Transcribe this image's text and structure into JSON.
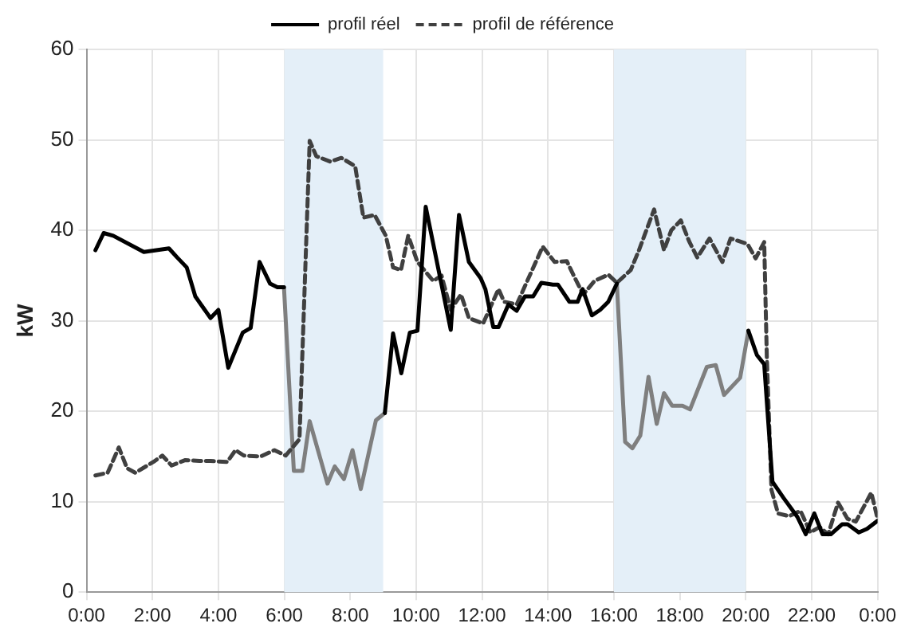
{
  "chart_data": {
    "type": "line",
    "ylabel": "kW",
    "xlim": [
      0,
      24
    ],
    "ylim": [
      0,
      60
    ],
    "xticks": [
      {
        "value": 0,
        "label": "0:00"
      },
      {
        "value": 2,
        "label": "2:00"
      },
      {
        "value": 4,
        "label": "4:00"
      },
      {
        "value": 6,
        "label": "6:00"
      },
      {
        "value": 8,
        "label": "8:00"
      },
      {
        "value": 10,
        "label": "10:00"
      },
      {
        "value": 12,
        "label": "12:00"
      },
      {
        "value": 14,
        "label": "14:00"
      },
      {
        "value": 16,
        "label": "16:00"
      },
      {
        "value": 18,
        "label": "18:00"
      },
      {
        "value": 20,
        "label": "20:00"
      },
      {
        "value": 22,
        "label": "22:00"
      },
      {
        "value": 24,
        "label": "0:00"
      }
    ],
    "yticks": [
      0,
      10,
      20,
      30,
      40,
      50,
      60
    ],
    "grid": true,
    "legend": "top",
    "marker": "none",
    "bands": [
      {
        "axis": "x",
        "from": 6,
        "to": 9,
        "color": "#e4eff8"
      },
      {
        "axis": "x",
        "from": 16,
        "to": 20,
        "color": "#e4eff8"
      }
    ],
    "series": [
      {
        "name": "profil réel",
        "color": "#000000",
        "line_style": "solid",
        "x": [
          0.27,
          0.52,
          0.81,
          1.74,
          2.5,
          2.75,
          3.04,
          3.3,
          3.76,
          4.0,
          4.3,
          4.74,
          4.98,
          5.25,
          5.57,
          5.79,
          5.99,
          7.0,
          9.05,
          9.3,
          9.55,
          9.81,
          10.04,
          10.29,
          11.05,
          11.3,
          11.6,
          11.96,
          12.1,
          12.34,
          12.5,
          12.8,
          13.05,
          13.3,
          13.55,
          13.8,
          14.15,
          14.3,
          14.65,
          14.9,
          15.05,
          15.33,
          15.58,
          15.83,
          16.09,
          18.0,
          20.08,
          20.34,
          20.56,
          20.81,
          21.15,
          21.57,
          21.82,
          22.08,
          22.33,
          22.58,
          22.92,
          23.09,
          23.43,
          23.68,
          24
        ],
        "values": [
          37.8,
          39.7,
          39.4,
          37.6,
          38.0,
          37.0,
          35.9,
          32.7,
          30.3,
          31.2,
          24.8,
          28.7,
          29.2,
          36.5,
          34.1,
          33.7,
          33.7,
          null,
          19.8,
          28.6,
          24.2,
          28.7,
          28.9,
          42.6,
          29.0,
          41.7,
          36.5,
          34.7,
          33.5,
          29.3,
          29.3,
          31.8,
          31.1,
          32.7,
          32.7,
          34.2,
          34.0,
          34.0,
          32.1,
          32.1,
          33.5,
          30.6,
          31.2,
          32.1,
          34.1,
          null,
          28.9,
          26.2,
          25.2,
          12.2,
          10.4,
          8.3,
          6.4,
          8.7,
          6.4,
          6.4,
          7.5,
          7.5,
          6.6,
          7.0,
          7.9
        ]
      },
      {
        "name": "profil de référence",
        "color": "#404040",
        "line_style": "dashed",
        "x": [
          0.27,
          0.64,
          0.98,
          1.23,
          1.48,
          2.03,
          2.3,
          2.58,
          3.0,
          3.43,
          3.76,
          4.27,
          4.52,
          4.77,
          5.28,
          5.7,
          6.04,
          6.46,
          6.77,
          6.97,
          7.39,
          7.73,
          8.15,
          8.4,
          8.74,
          9.08,
          9.3,
          9.54,
          9.76,
          10.04,
          10.52,
          10.77,
          11.05,
          11.36,
          11.6,
          12.03,
          12.5,
          12.67,
          13.05,
          13.84,
          14.2,
          14.57,
          14.82,
          15.07,
          15.41,
          15.83,
          16.09,
          16.51,
          16.76,
          17.22,
          17.52,
          17.74,
          18.03,
          18.28,
          18.53,
          18.9,
          19.29,
          19.54,
          20.05,
          20.3,
          20.56,
          20.64,
          20.78,
          20.98,
          21.32,
          21.66,
          21.96,
          22.24,
          22.5,
          22.8,
          23.09,
          23.34,
          23.81,
          24
        ],
        "values": [
          12.9,
          13.2,
          16.0,
          13.7,
          13.2,
          14.4,
          15.1,
          14.0,
          14.6,
          14.5,
          14.5,
          14.4,
          15.7,
          15.1,
          15.0,
          15.7,
          15.1,
          16.9,
          49.9,
          48.2,
          47.6,
          48.0,
          47.1,
          41.4,
          41.7,
          39.4,
          35.9,
          35.6,
          39.4,
          36.5,
          34.4,
          35.0,
          31.2,
          32.9,
          30.3,
          29.7,
          33.5,
          32.1,
          31.8,
          38.2,
          36.5,
          36.6,
          34.7,
          32.9,
          34.4,
          35.1,
          34.2,
          35.6,
          37.8,
          42.3,
          37.8,
          40.0,
          41.1,
          38.8,
          37.0,
          39.1,
          36.5,
          39.1,
          38.5,
          36.9,
          38.7,
          25.9,
          11.3,
          8.7,
          8.4,
          9.0,
          6.6,
          7.2,
          6.4,
          9.9,
          8.1,
          7.8,
          11.0,
          8.1
        ]
      },
      {
        "color": "#7f7f7f",
        "line_style": "solid",
        "x": [
          5.99,
          6.29,
          6.55,
          6.77,
          7.31,
          7.53,
          7.81,
          8.07,
          8.32,
          8.78,
          9.05,
          12.0,
          16.09,
          16.34,
          16.56,
          16.8,
          17.05,
          17.3,
          17.52,
          17.77,
          18.08,
          18.31,
          18.82,
          19.09,
          19.34,
          19.83,
          20.08
        ],
        "values": [
          33.7,
          13.4,
          13.4,
          18.9,
          12.0,
          13.9,
          12.5,
          15.7,
          11.4,
          19.0,
          19.8,
          null,
          34.1,
          16.6,
          15.9,
          17.3,
          23.8,
          18.6,
          22.0,
          20.6,
          20.6,
          20.2,
          24.9,
          25.1,
          21.8,
          23.7,
          28.9
        ]
      }
    ]
  }
}
